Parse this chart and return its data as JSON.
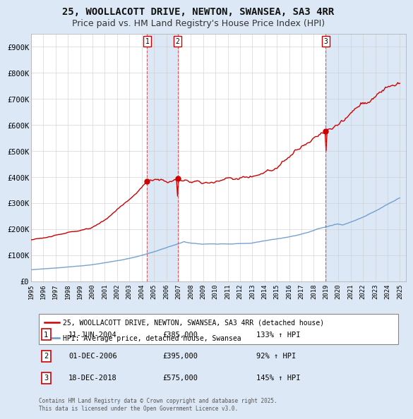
{
  "title": "25, WOOLLACOTT DRIVE, NEWTON, SWANSEA, SA3 4RR",
  "subtitle": "Price paid vs. HM Land Registry's House Price Index (HPI)",
  "bg_color": "#dce8f5",
  "plot_bg_color": "#ffffff",
  "grid_color": "#cccccc",
  "ylim": [
    0,
    950000
  ],
  "ytick_labels": [
    "£0",
    "£100K",
    "£200K",
    "£300K",
    "£400K",
    "£500K",
    "£600K",
    "£700K",
    "£800K",
    "£900K"
  ],
  "ytick_values": [
    0,
    100000,
    200000,
    300000,
    400000,
    500000,
    600000,
    700000,
    800000,
    900000
  ],
  "sale_dates_num": [
    2004.44,
    2006.92,
    2018.96
  ],
  "sale_prices": [
    385000,
    395000,
    575000
  ],
  "sale_labels": [
    "1",
    "2",
    "3"
  ],
  "red_line_color": "#cc0000",
  "blue_line_color": "#6699cc",
  "shade_color": "#dce8f5",
  "legend_entries": [
    "25, WOOLLACOTT DRIVE, NEWTON, SWANSEA, SA3 4RR (detached house)",
    "HPI: Average price, detached house, Swansea"
  ],
  "table_data": [
    [
      "1",
      "11-JUN-2004",
      "£385,000",
      "133% ↑ HPI"
    ],
    [
      "2",
      "01-DEC-2006",
      "£395,000",
      "92% ↑ HPI"
    ],
    [
      "3",
      "18-DEC-2018",
      "£575,000",
      "145% ↑ HPI"
    ]
  ],
  "footnote": "Contains HM Land Registry data © Crown copyright and database right 2025.\nThis data is licensed under the Open Government Licence v3.0.",
  "title_fontsize": 10,
  "subtitle_fontsize": 9
}
